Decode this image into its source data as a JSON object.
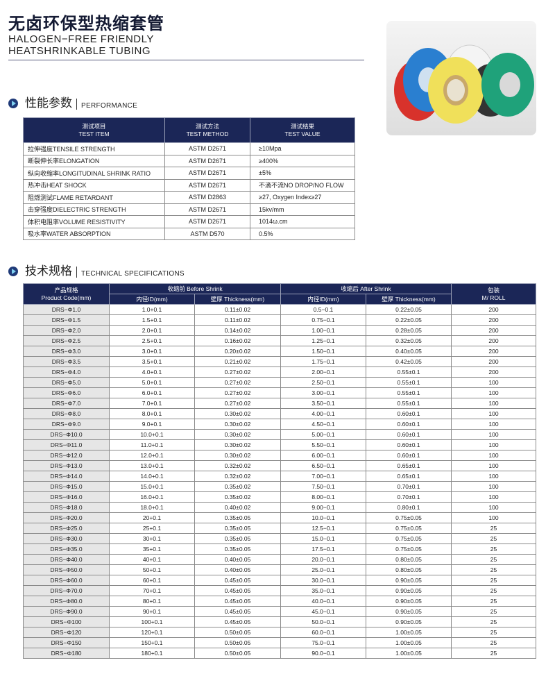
{
  "header": {
    "title_cn": "无卤环保型热缩套管",
    "title_en_line1": "HALOGEN−FREE FRIENDLY",
    "title_en_line2": "HEATSHRINKABLE TUBING"
  },
  "performance": {
    "section_cn": "性能参数",
    "section_en": "PERFORMANCE",
    "columns": [
      {
        "cn": "测试项目",
        "en": "TEST ITEM"
      },
      {
        "cn": "测试方法",
        "en": "TEST METHOD"
      },
      {
        "cn": "测试结果",
        "en": "TEST VALUE"
      }
    ],
    "rows": [
      [
        "拉伸强度TENSILE STRENGTH",
        "ASTM D2671",
        "≥10Mpa"
      ],
      [
        "断裂伸长率ELONGATION",
        "ASTM D2671",
        "≥400%"
      ],
      [
        "纵向收缩率LONGITUDINAL SHRINK RATIO",
        "ASTM D2671",
        "±5%"
      ],
      [
        "热冲击HEAT SHOCK",
        "ASTM D2671",
        "不滴不流NO DROP/NO FLOW"
      ],
      [
        "阻燃测试FLAME RETARDANT",
        "ASTM D2863",
        "≥27, Oxygen Index≥27"
      ],
      [
        "击穿强度DIELECTRIC STRENGTH",
        "ASTM D2671",
        "15kv/mm"
      ],
      [
        "体积电阻率VOLUME RESISTIVITY",
        "ASTM D2671",
        "1014ω.cm"
      ],
      [
        "吸水率WATER ABSORPTION",
        "ASTM D570",
        "0.5%"
      ]
    ]
  },
  "specs": {
    "section_cn": "技术规格",
    "section_en": "TECHNICAL SPECIFICATIONS",
    "head": {
      "code_cn": "产品规格",
      "code_en": "Product Code(mm)",
      "before": "收缩前 Before Shrink",
      "after": "收缩后 After Shrink",
      "id": "内径ID(mm)",
      "thickness": "壁厚 Thickness(mm)",
      "pack_cn": "包装",
      "pack_en": "M/ ROLL"
    },
    "rows": [
      [
        "DRS−Φ1.0",
        "1.0+0.1",
        "0.11±0.02",
        "0.5−0.1",
        "0.22±0.05",
        "200"
      ],
      [
        "DRS−Φ1.5",
        "1.5+0.1",
        "0.11±0.02",
        "0.75−0.1",
        "0.22±0.05",
        "200"
      ],
      [
        "DRS−Φ2.0",
        "2.0+0.1",
        "0.14±0.02",
        "1.00−0.1",
        "0.28±0.05",
        "200"
      ],
      [
        "DRS−Φ2.5",
        "2.5+0.1",
        "0.16±0.02",
        "1.25−0.1",
        "0.32±0.05",
        "200"
      ],
      [
        "DRS−Φ3.0",
        "3.0+0.1",
        "0.20±0.02",
        "1.50−0.1",
        "0.40±0.05",
        "200"
      ],
      [
        "DRS−Φ3.5",
        "3.5+0.1",
        "0.21±0.02",
        "1.75−0.1",
        "0.42±0.05",
        "200"
      ],
      [
        "DRS−Φ4.0",
        "4.0+0.1",
        "0.27±0.02",
        "2.00−0.1",
        "0.55±0.1",
        "200"
      ],
      [
        "DRS−Φ5.0",
        "5.0+0.1",
        "0.27±0.02",
        "2.50−0.1",
        "0.55±0.1",
        "100"
      ],
      [
        "DRS−Φ6.0",
        "6.0+0.1",
        "0.27±0.02",
        "3.00−0.1",
        "0.55±0.1",
        "100"
      ],
      [
        "DRS−Φ7.0",
        "7.0+0.1",
        "0.27±0.02",
        "3.50−0.1",
        "0.55±0.1",
        "100"
      ],
      [
        "DRS−Φ8.0",
        "8.0+0.1",
        "0.30±0.02",
        "4.00−0.1",
        "0.60±0.1",
        "100"
      ],
      [
        "DRS−Φ9.0",
        "9.0+0.1",
        "0.30±0.02",
        "4.50−0.1",
        "0.60±0.1",
        "100"
      ],
      [
        "DRS−Φ10.0",
        "10.0+0.1",
        "0.30±0.02",
        "5.00−0.1",
        "0.60±0.1",
        "100"
      ],
      [
        "DRS−Φ11.0",
        "11.0+0.1",
        "0.30±0.02",
        "5.50−0.1",
        "0.60±0.1",
        "100"
      ],
      [
        "DRS−Φ12.0",
        "12.0+0.1",
        "0.30±0.02",
        "6.00−0.1",
        "0.60±0.1",
        "100"
      ],
      [
        "DRS−Φ13.0",
        "13.0+0.1",
        "0.32±0.02",
        "6.50−0.1",
        "0.65±0.1",
        "100"
      ],
      [
        "DRS−Φ14.0",
        "14.0+0.1",
        "0.32±0.02",
        "7.00−0.1",
        "0.65±0.1",
        "100"
      ],
      [
        "DRS−Φ15.0",
        "15.0+0.1",
        "0.35±0.02",
        "7.50−0.1",
        "0.70±0.1",
        "100"
      ],
      [
        "DRS−Φ16.0",
        "16.0+0.1",
        "0.35±0.02",
        "8.00−0.1",
        "0.70±0.1",
        "100"
      ],
      [
        "DRS−Φ18.0",
        "18.0+0.1",
        "0.40±0.02",
        "9.00−0.1",
        "0.80±0.1",
        "100"
      ],
      [
        "DRS−Φ20.0",
        "20+0.1",
        "0.35±0.05",
        "10.0−0.1",
        "0.75±0.05",
        "100"
      ],
      [
        "DRS−Φ25.0",
        "25+0.1",
        "0.35±0.05",
        "12.5−0.1",
        "0.75±0.05",
        "25"
      ],
      [
        "DRS−Φ30.0",
        "30+0.1",
        "0.35±0.05",
        "15.0−0.1",
        "0.75±0.05",
        "25"
      ],
      [
        "DRS−Φ35.0",
        "35+0.1",
        "0.35±0.05",
        "17.5−0.1",
        "0.75±0.05",
        "25"
      ],
      [
        "DRS−Φ40.0",
        "40+0.1",
        "0.40±0.05",
        "20.0−0.1",
        "0.80±0.05",
        "25"
      ],
      [
        "DRS−Φ50.0",
        "50+0.1",
        "0.40±0.05",
        "25.0−0.1",
        "0.80±0.05",
        "25"
      ],
      [
        "DRS−Φ60.0",
        "60+0.1",
        "0.45±0.05",
        "30.0−0.1",
        "0.90±0.05",
        "25"
      ],
      [
        "DRS−Φ70.0",
        "70+0.1",
        "0.45±0.05",
        "35.0−0.1",
        "0.90±0.05",
        "25"
      ],
      [
        "DRS−Φ80.0",
        "80+0.1",
        "0.45±0.05",
        "40.0−0.1",
        "0.90±0.05",
        "25"
      ],
      [
        "DRS−Φ90.0",
        "90+0.1",
        "0.45±0.05",
        "45.0−0.1",
        "0.90±0.05",
        "25"
      ],
      [
        "DRS−Φ100",
        "100+0.1",
        "0.45±0.05",
        "50.0−0.1",
        "0.90±0.05",
        "25"
      ],
      [
        "DRS−Φ120",
        "120+0.1",
        "0.50±0.05",
        "60.0−0.1",
        "1.00±0.05",
        "25"
      ],
      [
        "DRS−Φ150",
        "150+0.1",
        "0.50±0.05",
        "75.0−0.1",
        "1.00±0.05",
        "25"
      ],
      [
        "DRS−Φ180",
        "180+0.1",
        "0.50±0.05",
        "90.0−0.1",
        "1.00±0.05",
        "25"
      ]
    ]
  },
  "colors": {
    "header_bg": "#1b2657",
    "code_cell_bg": "#e6e6e6",
    "tube_colors": [
      "#d8322b",
      "#2a7fd0",
      "#f0e05a",
      "#1fa27a",
      "#333333"
    ]
  }
}
